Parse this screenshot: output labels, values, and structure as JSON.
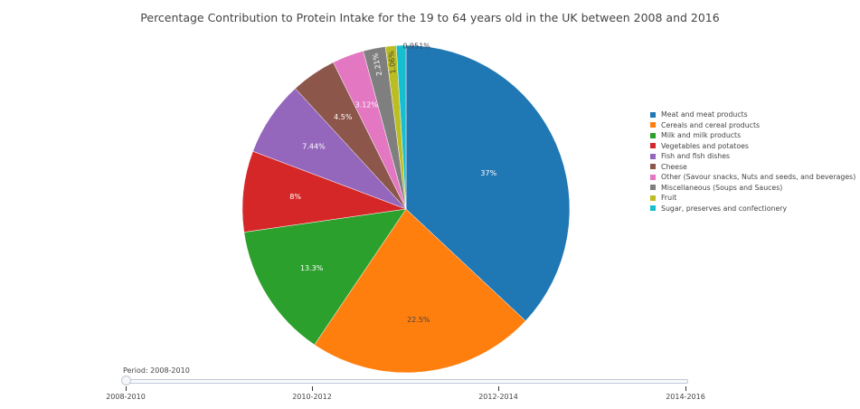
{
  "chart_data": {
    "type": "pie",
    "title": "Percentage Contribution to Protein Intake for the 19 to 64 years old in the UK between 2008 and 2016",
    "slices": [
      {
        "label": "Meat and meat products",
        "value": 37,
        "text": "37%",
        "color": "#1f77b4",
        "text_color": "#ffffff"
      },
      {
        "label": "Cereals and cereal products",
        "value": 22.5,
        "text": "22.5%",
        "color": "#ff7f0e",
        "text_color": "#444444"
      },
      {
        "label": "Milk and milk products",
        "value": 13.3,
        "text": "13.3%",
        "color": "#2ca02c",
        "text_color": "#ffffff"
      },
      {
        "label": "Vegetables and potatoes",
        "value": 8,
        "text": "8%",
        "color": "#d62728",
        "text_color": "#ffffff"
      },
      {
        "label": "Fish and fish dishes",
        "value": 7.44,
        "text": "7.44%",
        "color": "#9467bd",
        "text_color": "#ffffff"
      },
      {
        "label": "Cheese",
        "value": 4.5,
        "text": "4.5%",
        "color": "#8c564b",
        "text_color": "#ffffff"
      },
      {
        "label": "Other (Savour snacks, Nuts and seeds, and beverages)",
        "value": 3.12,
        "text": "3.12%",
        "color": "#e377c2",
        "text_color": "#ffffff"
      },
      {
        "label": "Miscellaneous (Soups and Sauces)",
        "value": 2.21,
        "text": "2.21%",
        "color": "#7f7f7f",
        "text_color": "#ffffff"
      },
      {
        "label": "Fruit",
        "value": 1.06,
        "text": "1.06%",
        "color": "#bcbd22",
        "text_color": "#444444"
      },
      {
        "label": "Sugar, preserves and confectionery",
        "value": 0.951,
        "text": "0.951%",
        "color": "#17becf",
        "text_color": "#444444"
      }
    ],
    "legend_position": "right"
  },
  "slider": {
    "current_label": "Period: 2008-2010",
    "steps": [
      "2008-2010",
      "2010-2012",
      "2012-2014",
      "2014-2016"
    ],
    "active_index": 0
  }
}
